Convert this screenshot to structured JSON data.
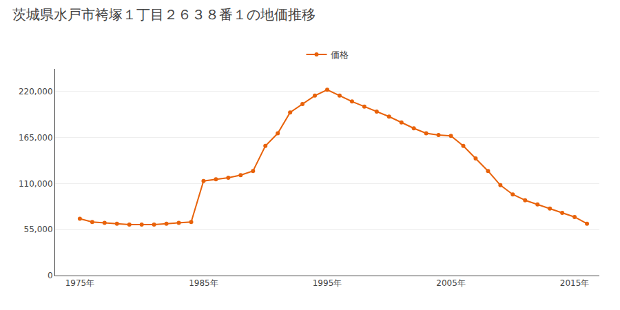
{
  "chart_data": {
    "type": "line",
    "title": "茨城県水戸市袴塚１丁目２６３８番１の地価推移",
    "x": [
      1975,
      1976,
      1977,
      1978,
      1979,
      1980,
      1981,
      1982,
      1983,
      1984,
      1985,
      1986,
      1987,
      1988,
      1989,
      1990,
      1991,
      1992,
      1993,
      1994,
      1995,
      1996,
      1997,
      1998,
      1999,
      2000,
      2001,
      2002,
      2003,
      2004,
      2005,
      2006,
      2007,
      2008,
      2009,
      2010,
      2011,
      2012,
      2013,
      2014,
      2015,
      2016
    ],
    "series": [
      {
        "name": "価格",
        "color": "#E8620A",
        "values": [
          68000,
          64000,
          63000,
          62000,
          61000,
          61000,
          61000,
          62000,
          63000,
          64000,
          113000,
          115000,
          117000,
          120000,
          125000,
          155000,
          170000,
          195000,
          205000,
          215000,
          222000,
          215000,
          208000,
          202000,
          196000,
          190000,
          183000,
          176000,
          170000,
          168000,
          167000,
          155000,
          140000,
          125000,
          108000,
          97000,
          90000,
          85000,
          80000,
          75000,
          70000,
          62000
        ]
      }
    ],
    "xlim": [
      1973,
      2017
    ],
    "xticks": [
      {
        "value": 1975,
        "label": "1975年"
      },
      {
        "value": 1985,
        "label": "1985年"
      },
      {
        "value": 1995,
        "label": "1995年"
      },
      {
        "value": 2005,
        "label": "2005年"
      },
      {
        "value": 2015,
        "label": "2015年"
      }
    ],
    "ylim": [
      0,
      247000
    ],
    "yticks": [
      0,
      {
        "value": 55000,
        "label": "55,000"
      },
      {
        "value": 110000,
        "label": "110,000"
      },
      {
        "value": 165000,
        "label": "165,000"
      },
      {
        "value": 220000,
        "label": "220,000"
      }
    ],
    "grid": "y",
    "legend": "top",
    "marker": "circle"
  }
}
